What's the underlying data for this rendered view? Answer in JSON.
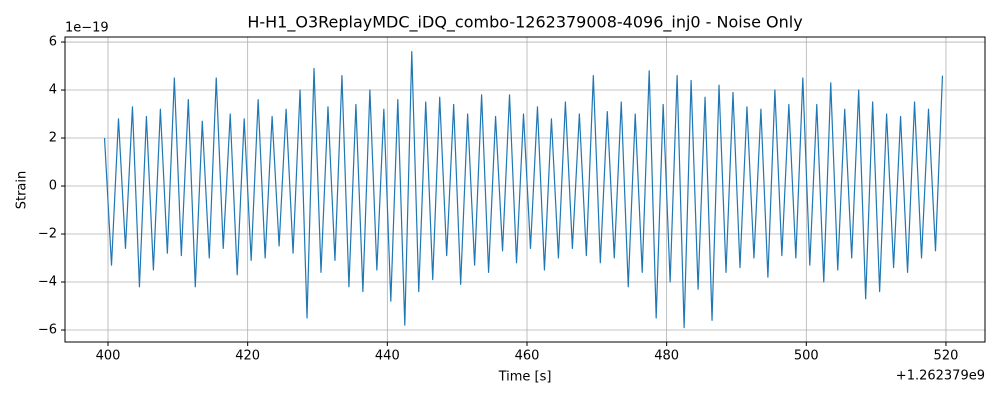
{
  "chart_data": {
    "type": "line",
    "title": "H-H1_O3ReplayMDC_iDQ_combo-1262379008-4096_inj0 - Noise Only",
    "x_label": "Time [s]",
    "y_label": "Strain",
    "x_offset_label": "+1.262379e9",
    "y_offset_label": "1e−19",
    "grid": true,
    "xlim": [
      393.84,
      525.59
    ],
    "ylim": [
      -6.5,
      6.21
    ],
    "xticks": [
      400,
      420,
      440,
      460,
      480,
      500,
      520
    ],
    "yticks": [
      {
        "value": -6,
        "label": "−6"
      },
      {
        "value": -4,
        "label": "−4"
      },
      {
        "value": -2,
        "label": "−2"
      },
      0,
      2,
      4,
      6
    ],
    "series": [
      {
        "name": "Strain",
        "color": "#1f77b4",
        "x": [
          399.5,
          400.5,
          401.5,
          402.5,
          403.5,
          404.5,
          405.5,
          406.5,
          407.5,
          408.5,
          409.5,
          410.5,
          411.5,
          412.5,
          413.5,
          414.5,
          415.5,
          416.5,
          417.5,
          418.5,
          419.5,
          420.5,
          421.5,
          422.5,
          423.5,
          424.5,
          425.5,
          426.5,
          427.5,
          428.5,
          429.5,
          430.5,
          431.5,
          432.5,
          433.5,
          434.5,
          435.5,
          436.5,
          437.5,
          438.5,
          439.5,
          440.5,
          441.5,
          442.5,
          443.5,
          444.5,
          445.5,
          446.5,
          447.5,
          448.5,
          449.5,
          450.5,
          451.5,
          452.5,
          453.5,
          454.5,
          455.5,
          456.5,
          457.5,
          458.5,
          459.5,
          460.5,
          461.5,
          462.5,
          463.5,
          464.5,
          465.5,
          466.5,
          467.5,
          468.5,
          469.5,
          470.5,
          471.5,
          472.5,
          473.5,
          474.5,
          475.5,
          476.5,
          477.5,
          478.5,
          479.5,
          480.5,
          481.5,
          482.5,
          483.5,
          484.5,
          485.5,
          486.5,
          487.5,
          488.5,
          489.5,
          490.5,
          491.5,
          492.5,
          493.5,
          494.5,
          495.5,
          496.5,
          497.5,
          498.5,
          499.5,
          500.5,
          501.5,
          502.5,
          503.5,
          504.5,
          505.5,
          506.5,
          507.5,
          508.5,
          509.5,
          510.5,
          511.5,
          512.5,
          513.5,
          514.5,
          515.5,
          516.5,
          517.5,
          518.5,
          519.5
        ],
        "values": [
          2.0,
          -3.3,
          2.8,
          -2.6,
          3.3,
          -4.2,
          2.9,
          -3.5,
          3.2,
          -2.8,
          4.5,
          -2.9,
          3.6,
          -4.2,
          2.7,
          -3.0,
          4.5,
          -2.6,
          3.0,
          -3.7,
          2.8,
          -3.1,
          3.6,
          -3.0,
          2.9,
          -2.5,
          3.2,
          -2.8,
          4.0,
          -5.5,
          4.9,
          -3.6,
          3.3,
          -3.1,
          4.6,
          -4.2,
          3.4,
          -4.4,
          4.0,
          -3.5,
          3.2,
          -4.8,
          3.6,
          -5.8,
          5.6,
          -4.4,
          3.5,
          -3.9,
          3.7,
          -2.9,
          3.4,
          -4.1,
          3.0,
          -3.3,
          3.8,
          -3.6,
          2.9,
          -2.7,
          3.8,
          -3.2,
          3.0,
          -2.6,
          3.3,
          -3.5,
          2.8,
          -3.0,
          3.5,
          -2.6,
          3.0,
          -2.9,
          4.6,
          -3.2,
          3.1,
          -3.0,
          3.5,
          -4.2,
          3.0,
          -3.6,
          4.8,
          -5.5,
          3.4,
          -4.0,
          4.6,
          -5.9,
          4.4,
          -4.3,
          3.7,
          -5.6,
          4.2,
          -3.6,
          3.9,
          -3.4,
          3.3,
          -3.0,
          3.2,
          -3.8,
          4.0,
          -2.9,
          3.4,
          -3.0,
          4.5,
          -3.3,
          3.4,
          -4.0,
          4.3,
          -3.5,
          3.2,
          -3.0,
          4.0,
          -4.7,
          3.5,
          -4.4,
          3.0,
          -3.4,
          2.9,
          -3.6,
          3.5,
          -3.0,
          3.2,
          -2.7,
          4.6
        ]
      }
    ]
  }
}
